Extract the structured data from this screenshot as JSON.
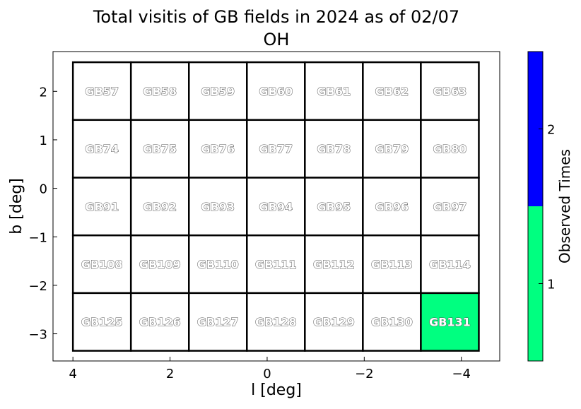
{
  "chart_data": {
    "type": "heatmap",
    "title_line1": "Total visitis of GB fields in 2024 as of 02/07",
    "title_line2": "OH",
    "xlabel": "l [deg]",
    "ylabel": "b [deg]",
    "xlim": [
      4.41,
      -4.79
    ],
    "ylim": [
      -3.56,
      2.82
    ],
    "xticks": [
      4,
      2,
      0,
      -2,
      -4
    ],
    "yticks": [
      2,
      1,
      0,
      -1,
      -2,
      -3
    ],
    "xtick_labels": [
      "4",
      "2",
      "0",
      "−2",
      "−4"
    ],
    "ytick_labels": [
      "2",
      "1",
      "0",
      "−1",
      "−2",
      "−3"
    ],
    "grid": false,
    "field_extent": {
      "l": [
        4.0,
        -4.36
      ],
      "b": [
        2.6,
        -3.35
      ]
    },
    "fields": [
      [
        {
          "name": "GB57",
          "value": 0
        },
        {
          "name": "GB58",
          "value": 0
        },
        {
          "name": "GB59",
          "value": 0
        },
        {
          "name": "GB60",
          "value": 0
        },
        {
          "name": "GB61",
          "value": 0
        },
        {
          "name": "GB62",
          "value": 0
        },
        {
          "name": "GB63",
          "value": 0
        }
      ],
      [
        {
          "name": "GB74",
          "value": 0
        },
        {
          "name": "GB75",
          "value": 0
        },
        {
          "name": "GB76",
          "value": 0
        },
        {
          "name": "GB77",
          "value": 0
        },
        {
          "name": "GB78",
          "value": 0
        },
        {
          "name": "GB79",
          "value": 0
        },
        {
          "name": "GB80",
          "value": 0
        }
      ],
      [
        {
          "name": "GB91",
          "value": 0
        },
        {
          "name": "GB92",
          "value": 0
        },
        {
          "name": "GB93",
          "value": 0
        },
        {
          "name": "GB94",
          "value": 0
        },
        {
          "name": "GB95",
          "value": 0
        },
        {
          "name": "GB96",
          "value": 0
        },
        {
          "name": "GB97",
          "value": 0
        }
      ],
      [
        {
          "name": "GB108",
          "value": 0
        },
        {
          "name": "GB109",
          "value": 0
        },
        {
          "name": "GB110",
          "value": 0
        },
        {
          "name": "GB111",
          "value": 0
        },
        {
          "name": "GB112",
          "value": 0
        },
        {
          "name": "GB113",
          "value": 0
        },
        {
          "name": "GB114",
          "value": 0
        }
      ],
      [
        {
          "name": "GB125",
          "value": 0
        },
        {
          "name": "GB126",
          "value": 0
        },
        {
          "name": "GB127",
          "value": 0
        },
        {
          "name": "GB128",
          "value": 0
        },
        {
          "name": "GB129",
          "value": 0
        },
        {
          "name": "GB130",
          "value": 0
        },
        {
          "name": "GB131",
          "value": 1
        }
      ]
    ],
    "colorbar": {
      "label": "Observed Times",
      "range": [
        0.5,
        2.5
      ],
      "ticks": [
        1,
        2
      ],
      "tick_labels": [
        "1",
        "2"
      ],
      "colors": {
        "1": "#00ff80",
        "2": "#0000ff"
      },
      "unobserved_color": "#ffffff"
    }
  }
}
